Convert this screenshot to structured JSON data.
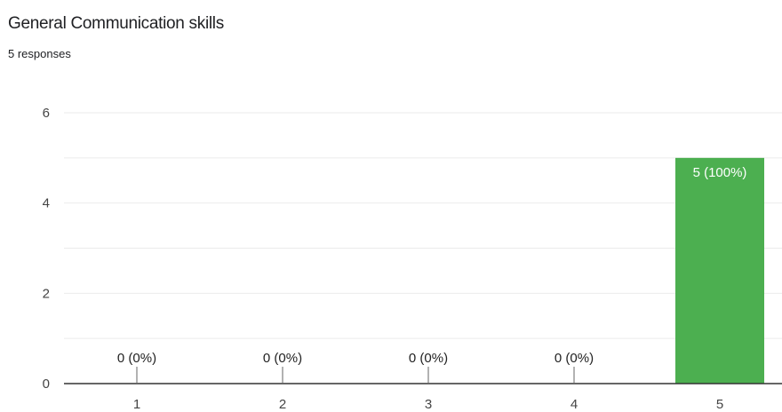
{
  "title": "General Communication skills",
  "subtitle": "5 responses",
  "colors": {
    "bar": "#4caf50",
    "grid": "#ebebeb",
    "axis": "#333333",
    "text": "#202124"
  },
  "chart_data": {
    "type": "bar",
    "categories": [
      "1",
      "2",
      "3",
      "4",
      "5"
    ],
    "values": [
      0,
      0,
      0,
      0,
      5
    ],
    "data_labels": [
      "0 (0%)",
      "0 (0%)",
      "0 (0%)",
      "0 (0%)",
      "5 (100%)"
    ],
    "yticks": [
      0,
      2,
      4,
      6
    ],
    "ylim": [
      0,
      6
    ],
    "grid": true,
    "legend": false
  }
}
